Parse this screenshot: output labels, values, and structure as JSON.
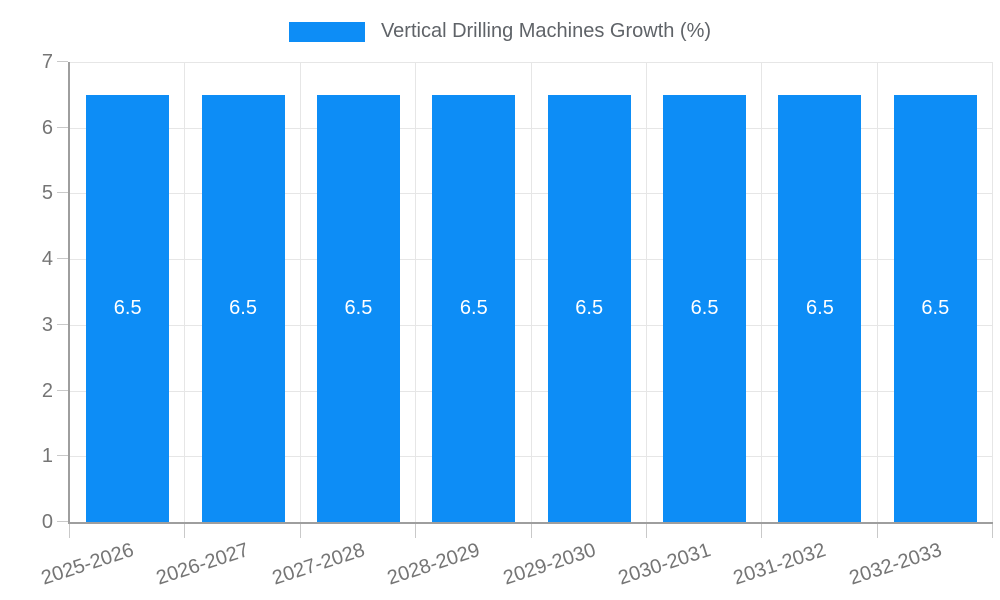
{
  "legend": {
    "label": "Vertical Drilling Machines Growth (%)"
  },
  "chart_data": {
    "type": "bar",
    "title": "Vertical Drilling Machines Growth (%)",
    "series_name": "Vertical Drilling Machines Growth (%)",
    "categories": [
      "2025-2026",
      "2026-2027",
      "2027-2028",
      "2028-2029",
      "2029-2030",
      "2030-2031",
      "2031-2032",
      "2032-2033"
    ],
    "values": [
      6.5,
      6.5,
      6.5,
      6.5,
      6.5,
      6.5,
      6.5,
      6.5
    ],
    "value_label_texts": [
      "6.5",
      "6.5",
      "6.5",
      "6.5",
      "6.5",
      "6.5",
      "6.5",
      "6.5"
    ],
    "xlabel": "",
    "ylabel": "",
    "ylim": [
      0,
      7
    ],
    "yticks": [
      0,
      1,
      2,
      3,
      4,
      5,
      6,
      7
    ],
    "grid": true,
    "legend_position": "top-center",
    "value_label_position": "inside-center",
    "x_label_rotation_deg": -18,
    "bar_width_fraction": 0.72
  },
  "colors": {
    "bar": "#0d8df6",
    "gridline": "#e6e6e6",
    "tick": "#c9c9c9",
    "axis_line": "#9e9e9e",
    "axis_text": "#757575",
    "legend_text": "#5f6368",
    "value_label": "#ffffff",
    "background": "#ffffff"
  }
}
